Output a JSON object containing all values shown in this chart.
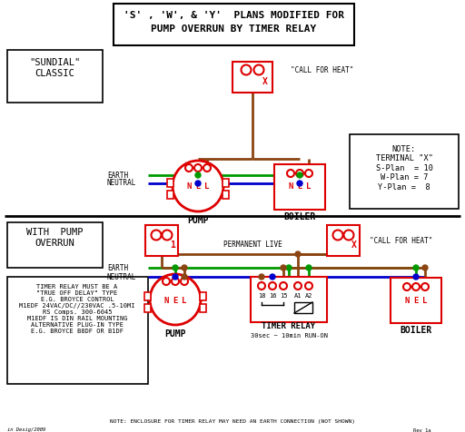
{
  "title_line1": "'S' , 'W', & 'Y'  PLANS MODIFIED FOR",
  "title_line2": "PUMP OVERRUN BY TIMER RELAY",
  "bg_color": "#ffffff",
  "RED": "#dd0000",
  "GREEN": "#009900",
  "BLUE": "#0000cc",
  "BROWN": "#8B4513",
  "BLACK": "#000000",
  "note_text": "NOTE:\nTERMINAL \"X\"\nS-Plan  = 10\nW-Plan = 7\nY-Plan =  8",
  "timer_note_text": "TIMER RELAY MUST BE A\n\"TRUE OFF DELAY\" TYPE\nE.G. BROYCE CONTROL\nM1EDF 24VAC/DC//230VAC .5-10MI\nRS Comps. 300-6045\nM1EDF IS DIN RAIL MOUNTING\nALTERNATIVE PLUG-IN TYPE\nE.G. BROYCE B8DF OR B1DF",
  "bottom_note": "NOTE: ENCLOSURE FOR TIMER RELAY MAY NEED AN EARTH CONNECTION (NOT SHOWN)",
  "credit": "in Desig/2009",
  "rev": "Rev 1a"
}
